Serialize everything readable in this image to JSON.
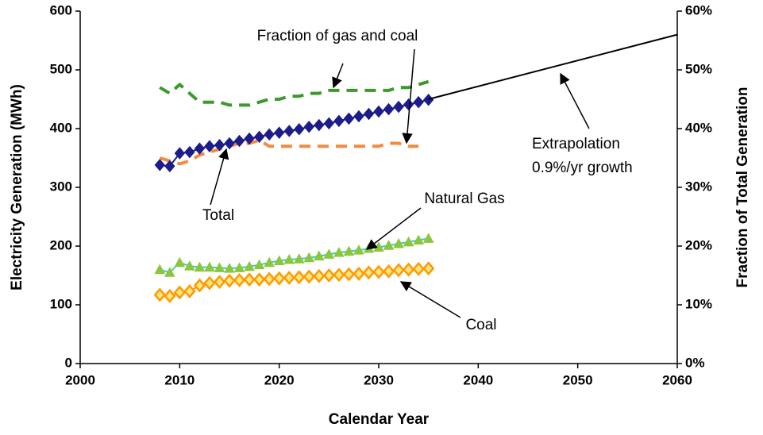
{
  "chart_data": {
    "type": "line",
    "xlabel": "Calendar Year",
    "ylabel": "Electricity Generation (MWh)",
    "y2label": "Fraction of Total Generation",
    "xlim": [
      2000,
      2060
    ],
    "xticks": [
      2000,
      2010,
      2020,
      2030,
      2040,
      2050,
      2060
    ],
    "ylim": [
      0,
      600
    ],
    "yticks": [
      0,
      100,
      200,
      300,
      400,
      500,
      600
    ],
    "y2lim": [
      0,
      60
    ],
    "y2ticks": [
      {
        "value": 0,
        "label": "0%"
      },
      {
        "value": 10,
        "label": "10%"
      },
      {
        "value": 20,
        "label": "20%"
      },
      {
        "value": 30,
        "label": "30%"
      },
      {
        "value": 40,
        "label": "40%"
      },
      {
        "value": 50,
        "label": "50%"
      },
      {
        "value": 60,
        "label": "60%"
      }
    ],
    "grid": false,
    "annotations": [
      "Fraction of gas and coal",
      "Total",
      "Natural Gas",
      "Coal",
      "Extrapolation",
      "0.9%/yr growth"
    ],
    "series": [
      {
        "color": "#3a9a2a",
        "line_color": "#3a9a2a",
        "dash": true,
        "marker": null,
        "axis": "y2",
        "x": [
          2008,
          2009,
          2010,
          2011,
          2012,
          2013,
          2014,
          2015,
          2016,
          2017,
          2018,
          2019,
          2020,
          2021,
          2022,
          2023,
          2024,
          2025,
          2026,
          2027,
          2028,
          2029,
          2030,
          2031,
          2032,
          2033,
          2034,
          2035
        ],
        "values": [
          47,
          46,
          47.5,
          46,
          44.5,
          44.5,
          44.5,
          44,
          44,
          44,
          44.5,
          45,
          45,
          45.5,
          45.5,
          46,
          46,
          46.5,
          46.5,
          46.5,
          46.5,
          46.5,
          46.5,
          46.5,
          47,
          47,
          47.5,
          48
        ]
      },
      {
        "color": "#f58a3c",
        "line_color": "#f58a3c",
        "dash": true,
        "marker": null,
        "axis": "y2",
        "x": [
          2008,
          2009,
          2010,
          2011,
          2012,
          2013,
          2014,
          2015,
          2016,
          2017,
          2018,
          2019,
          2020,
          2021,
          2022,
          2023,
          2024,
          2025,
          2026,
          2027,
          2028,
          2029,
          2030,
          2031,
          2032,
          2033,
          2034,
          2035
        ],
        "values": [
          35,
          34.5,
          34,
          34.5,
          35.5,
          36,
          36.5,
          37,
          37.5,
          37.5,
          38,
          37,
          37,
          37,
          37,
          37,
          37,
          37,
          37,
          37,
          37,
          37,
          37,
          37.5,
          37.5,
          37,
          37,
          null
        ]
      },
      {
        "color": "#1c1c8a",
        "line_color": "#1c1c8a",
        "dash": false,
        "marker": "diamond",
        "x": [
          2008,
          2009,
          2010,
          2011,
          2012,
          2013,
          2014,
          2015,
          2016,
          2017,
          2018,
          2019,
          2020,
          2021,
          2022,
          2023,
          2024,
          2025,
          2026,
          2027,
          2028,
          2029,
          2030,
          2031,
          2032,
          2033,
          2034,
          2035
        ],
        "values": [
          338,
          336,
          358,
          360,
          366,
          370,
          372,
          375,
          379,
          383,
          386,
          390,
          393,
          396,
          399,
          403,
          406,
          409,
          413,
          417,
          421,
          425,
          429,
          433,
          437,
          441,
          445,
          449
        ]
      },
      {
        "color": "#000000",
        "line_color": "#000000",
        "dash": false,
        "marker": null,
        "x": [
          2035,
          2060
        ],
        "values": [
          450,
          560
        ]
      },
      {
        "color": "#8cc63f",
        "line_color": "#33cccc",
        "dash": false,
        "marker": "triangle",
        "x": [
          2008,
          2009,
          2010,
          2011,
          2012,
          2013,
          2014,
          2015,
          2016,
          2017,
          2018,
          2019,
          2020,
          2021,
          2022,
          2023,
          2024,
          2025,
          2026,
          2027,
          2028,
          2029,
          2030,
          2031,
          2032,
          2033,
          2034,
          2035
        ],
        "values": [
          160,
          155,
          172,
          166,
          164,
          164,
          163,
          162,
          163,
          165,
          168,
          172,
          175,
          177,
          178,
          180,
          183,
          186,
          189,
          191,
          193,
          196,
          198,
          201,
          204,
          207,
          210,
          213
        ]
      },
      {
        "color": "#ff9900",
        "line_color": "#ff9900",
        "dash": false,
        "marker": "diamond-open",
        "x": [
          2008,
          2009,
          2010,
          2011,
          2012,
          2013,
          2014,
          2015,
          2016,
          2017,
          2018,
          2019,
          2020,
          2021,
          2022,
          2023,
          2024,
          2025,
          2026,
          2027,
          2028,
          2029,
          2030,
          2031,
          2032,
          2033,
          2034,
          2035
        ],
        "values": [
          117,
          115,
          121,
          123,
          133,
          137,
          139,
          141,
          142,
          143,
          143,
          144,
          145,
          146,
          147,
          148,
          149,
          150,
          151,
          152,
          153,
          155,
          156,
          157,
          159,
          160,
          161,
          162
        ]
      }
    ]
  }
}
